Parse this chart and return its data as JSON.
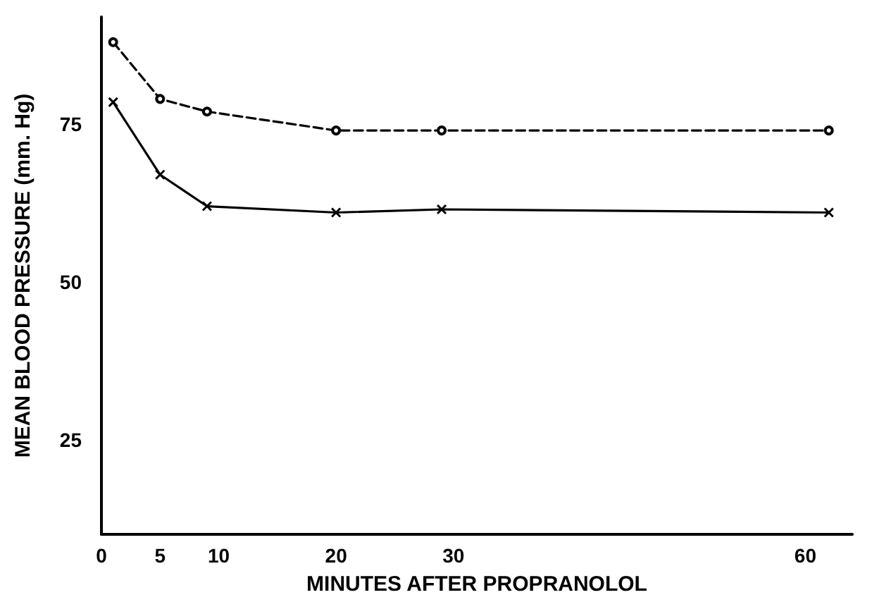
{
  "chart_data": {
    "type": "line",
    "xlabel": "MINUTES AFTER PROPRANOLOL",
    "ylabel": "MEAN BLOOD PRESSURE (mm. Hg)",
    "x": [
      1,
      5,
      9,
      20,
      29,
      62
    ],
    "series": [
      {
        "color": "#000000",
        "marker": "circle",
        "line_style": "dashed",
        "values": [
          88,
          79,
          77,
          74,
          74,
          74
        ]
      },
      {
        "color": "#000000",
        "marker": "cross",
        "line_style": "solid",
        "values": [
          78.5,
          67,
          62,
          61,
          61.5,
          61
        ]
      }
    ],
    "xlim": [
      0,
      64
    ],
    "xticks": [
      0,
      5,
      10,
      20,
      30,
      60
    ],
    "ylim": [
      10,
      92
    ],
    "yticks": [
      25,
      50,
      75
    ],
    "grid": false
  }
}
